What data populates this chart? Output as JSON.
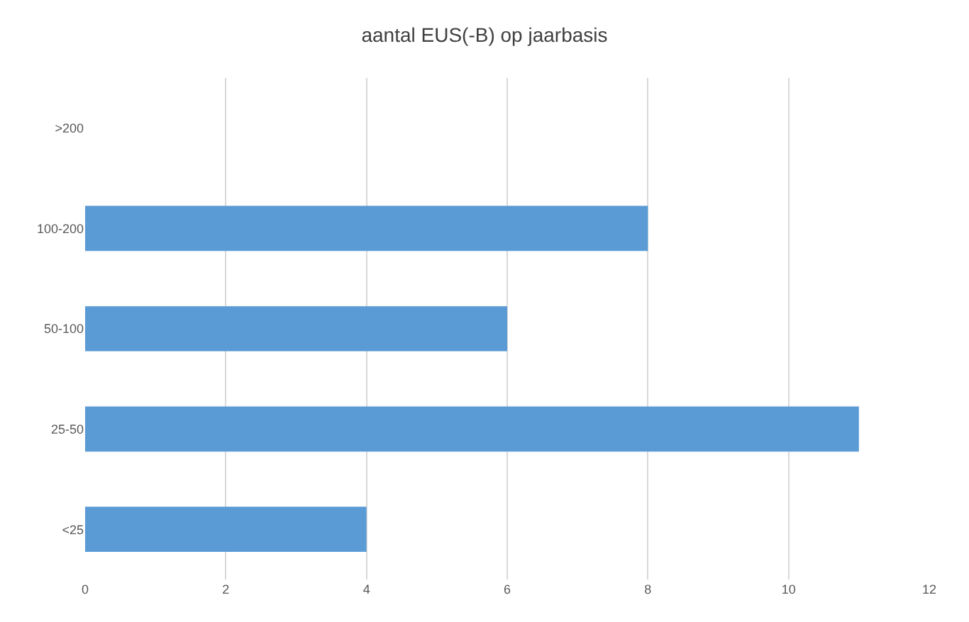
{
  "chart_data": {
    "type": "bar",
    "orientation": "horizontal",
    "title": "aantal EUS(-B) op jaarbasis",
    "categories": [
      ">200",
      "100-200",
      "50-100",
      "25-50",
      "<25"
    ],
    "values": [
      null,
      8,
      6,
      11,
      4
    ],
    "color": "#5b9bd5",
    "xlim": [
      0,
      12
    ],
    "xticks": [
      0,
      2,
      4,
      6,
      8,
      10,
      12
    ],
    "grid": "x"
  }
}
